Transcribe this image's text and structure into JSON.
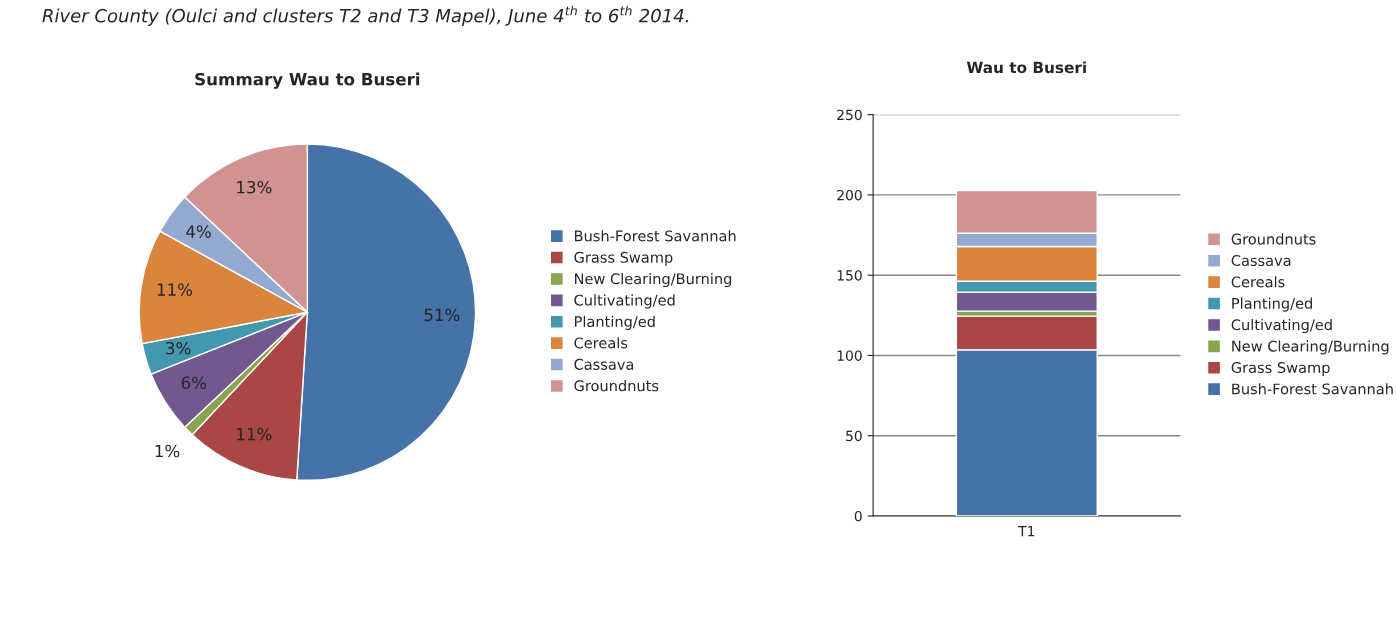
{
  "chart_data": [
    {
      "type": "pie",
      "title": "Summary Wau to Buseri",
      "annotations": [
        "River County (Oulci and clusters T2 and T3 Mapel), June 4$^{th}$ to 6$^{th}$ 2014."
      ],
      "categories": [
        "Bush-Forest Savannah",
        "Grass Swamp",
        "New Clearing/Burning",
        "Cultivating/ed",
        "Planting/ed",
        "Cereals",
        "Cassava",
        "Groundnuts"
      ],
      "values": [
        51,
        11,
        1,
        6,
        3,
        11,
        4,
        13
      ],
      "colors": [
        "#4572a7",
        "#aa4643",
        "#89a54e",
        "#71588f",
        "#4198af",
        "#db843d",
        "#93a9cf",
        "#d19392"
      ],
      "value_labels": [
        "51%",
        "11%",
        "1%",
        "6%",
        "3%",
        "11%",
        "4%",
        "13%"
      ],
      "legend": "right"
    },
    {
      "type": "bar",
      "title": "Wau to Buseri",
      "categories": [
        "T1"
      ],
      "stacked": true,
      "series": [
        {
          "name": "Bush-Forest Savannah",
          "color": "#4572a7",
          "values": [
            103.5
          ]
        },
        {
          "name": "Grass Swamp",
          "color": "#aa4643",
          "values": [
            21
          ]
        },
        {
          "name": "New Clearing/Burning",
          "color": "#89a54e",
          "values": [
            3.1
          ]
        },
        {
          "name": "Cultivating/ed",
          "color": "#71588f",
          "values": [
            11.8
          ]
        },
        {
          "name": "Planting/ed",
          "color": "#4198af",
          "values": [
            6.8
          ]
        },
        {
          "name": "Cereals",
          "color": "#db843d",
          "values": [
            21.7
          ]
        },
        {
          "name": "Cassava",
          "color": "#93a9cf",
          "values": [
            8.3
          ]
        },
        {
          "name": "Groundnuts",
          "color": "#d19392",
          "values": [
            26.5
          ]
        }
      ],
      "ylim": [
        0,
        250
      ],
      "yticks": [
        0,
        50,
        100,
        150,
        200,
        250
      ],
      "grid": "y",
      "legend": "right"
    }
  ]
}
